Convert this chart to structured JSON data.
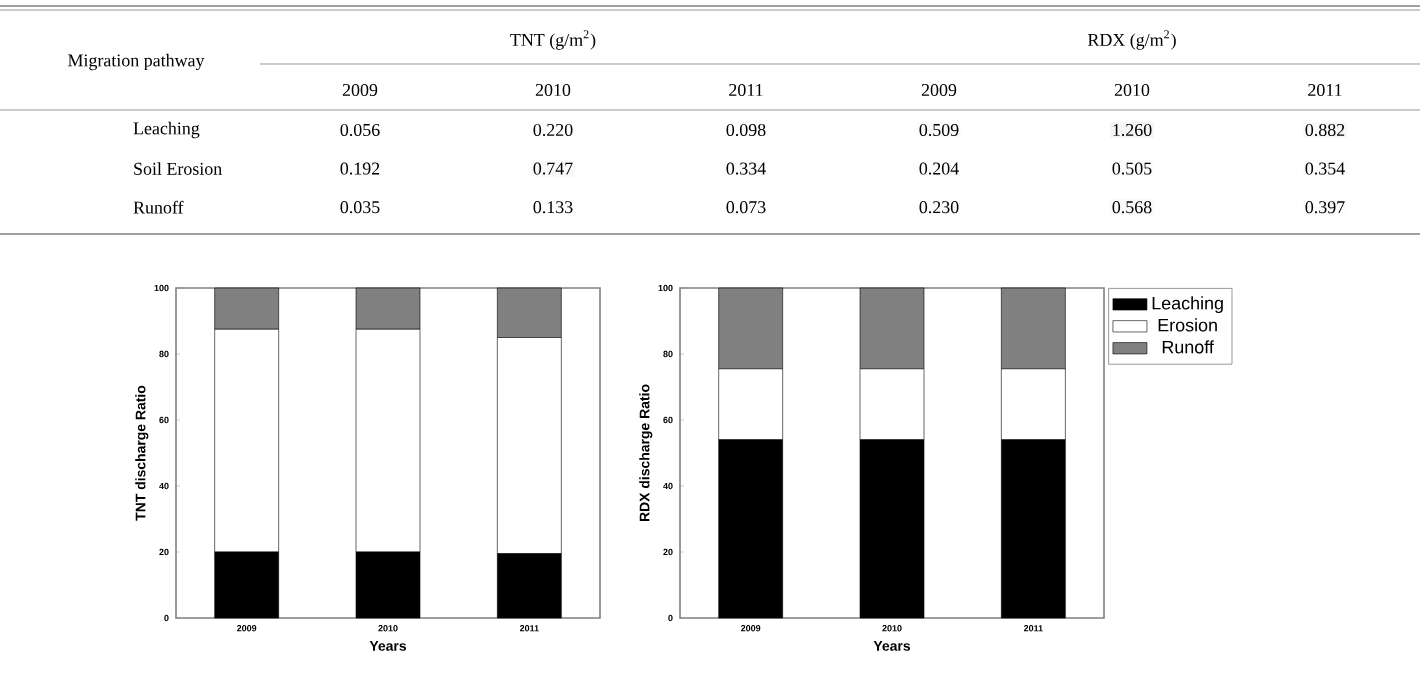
{
  "chart_data": [
    {
      "type": "heatmap",
      "ylabel": "Migration pathway",
      "annotations": [
        "TNT (g/m$^{2}$)",
        "RDX (g/m$^{2}$)"
      ],
      "categories": [
        "2009",
        "2010",
        "2011",
        "2009",
        "2010",
        "2011"
      ],
      "y_categories": [
        "Leaching",
        "Soil Erosion",
        "Runoff"
      ],
      "cells": [
        [
          0.056,
          0.22,
          0.098,
          0.509,
          1.26,
          0.882
        ],
        [
          0.192,
          0.747,
          0.334,
          0.204,
          0.505,
          0.354
        ],
        [
          0.035,
          0.133,
          0.073,
          0.23,
          0.568,
          0.397
        ]
      ],
      "cell_labels": [
        [
          "0.056",
          "0.220",
          "0.098",
          "0.509",
          "1.260",
          "0.882"
        ],
        [
          "0.192",
          "0.747",
          "0.334",
          "0.204",
          "0.505",
          "0.354"
        ],
        [
          "0.035",
          "0.133",
          "0.073",
          "0.230",
          "0.568",
          "0.397"
        ]
      ]
    },
    {
      "type": "bar",
      "stacked": true,
      "xlabel": "Years",
      "ylabel": "TNT discharge Ratio",
      "categories": [
        "2009",
        "2010",
        "2011"
      ],
      "series": [
        {
          "color": "#000000",
          "values": [
            20,
            20,
            19.5
          ]
        },
        {
          "color": "#ffffff",
          "values": [
            67.5,
            67.5,
            65.5
          ]
        },
        {
          "color": "#808080",
          "values": [
            12.5,
            12.5,
            15
          ]
        }
      ],
      "ylim": [
        0,
        100
      ],
      "yticks": [
        0,
        20,
        40,
        60,
        80,
        100
      ]
    },
    {
      "type": "bar",
      "stacked": true,
      "xlabel": "Years",
      "ylabel": "RDX discharge Ratio",
      "categories": [
        "2009",
        "2010",
        "2011"
      ],
      "legend": "top right",
      "series": [
        {
          "name": "Leaching",
          "color": "#000000",
          "values": [
            54,
            54,
            54
          ]
        },
        {
          "name": "Erosion",
          "color": "#ffffff",
          "values": [
            21.5,
            21.5,
            21.5
          ]
        },
        {
          "name": "Runoff",
          "color": "#808080",
          "values": [
            24.5,
            24.5,
            24.5
          ]
        }
      ],
      "ylim": [
        0,
        100
      ],
      "yticks": [
        0,
        20,
        40,
        60,
        80,
        100
      ]
    }
  ]
}
